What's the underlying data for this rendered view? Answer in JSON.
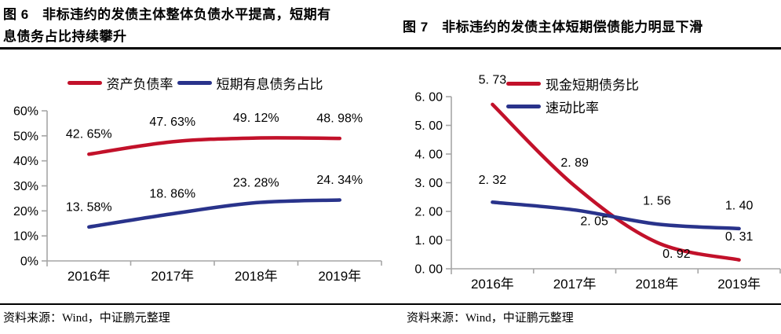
{
  "colors": {
    "red": "#C2112A",
    "blue": "#29338B",
    "axis": "#A6A6A6",
    "text": "#000000"
  },
  "figures": {
    "left": {
      "title": "图 6　非标违约的发债主体整体负债水平提高，短期有息债务占比持续攀升",
      "source": "资料来源：Wind，中证鹏元整理"
    },
    "right": {
      "title": "图 7　非标违约的发债主体短期偿债能力明显下滑",
      "source": "资料来源：Wind，中证鹏元整理"
    }
  },
  "chart_data": [
    {
      "type": "line",
      "title": "图 6　非标违约的发债主体整体负债水平提高，短期有息债务占比持续攀升",
      "categories": [
        "2016年",
        "2017年",
        "2018年",
        "2019年"
      ],
      "series": [
        {
          "name": "资产负债率",
          "color_key": "red",
          "values": [
            42.65,
            47.63,
            49.12,
            48.98
          ],
          "labels": [
            "42. 65%",
            "47. 63%",
            "49. 12%",
            "48. 98%"
          ]
        },
        {
          "name": "短期有息债务占比",
          "color_key": "blue",
          "values": [
            13.58,
            18.86,
            23.28,
            24.34
          ],
          "labels": [
            "13. 58%",
            "18. 86%",
            "23. 28%",
            "24. 34%"
          ]
        }
      ],
      "y_axis": {
        "min": 0,
        "max": 60,
        "tick_labels": [
          "0%",
          "10%",
          "20%",
          "30%",
          "40%",
          "50%",
          "60%"
        ]
      },
      "legend_position": "top-centered",
      "grid": false
    },
    {
      "type": "line",
      "title": "图 7　非标违约的发债主体短期偿债能力明显下滑",
      "categories": [
        "2016年",
        "2017年",
        "2018年",
        "2019年"
      ],
      "series": [
        {
          "name": "现金短期债务比",
          "color_key": "red",
          "values": [
            5.73,
            2.89,
            0.92,
            0.31
          ],
          "labels": [
            "5. 73",
            "2. 89",
            "0. 92",
            "0. 31"
          ]
        },
        {
          "name": "速动比率",
          "color_key": "blue",
          "values": [
            2.32,
            2.05,
            1.56,
            1.4
          ],
          "labels": [
            "2. 32",
            "2. 05",
            "1. 56",
            "1. 40"
          ]
        }
      ],
      "y_axis": {
        "min": 0,
        "max": 6,
        "tick_labels": [
          "0. 00",
          "1. 00",
          "2. 00",
          "3. 00",
          "4. 00",
          "5. 00",
          "6. 00"
        ]
      },
      "legend_position": "top-left-stacked",
      "grid": false
    }
  ]
}
